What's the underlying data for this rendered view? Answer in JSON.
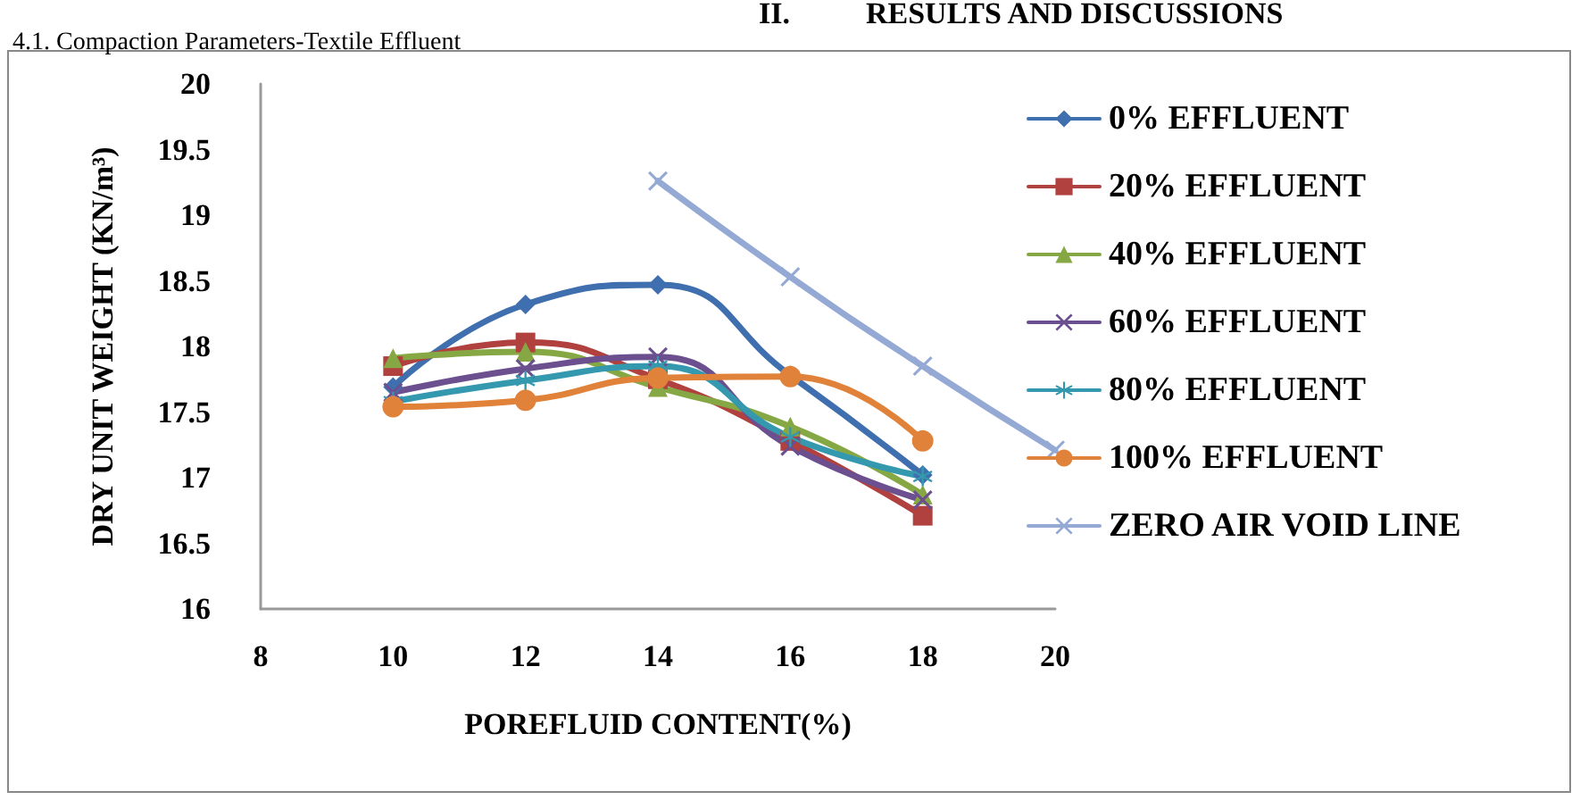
{
  "chart_data": {
    "type": "line",
    "title": "II.          RESULTS AND DISCUSSIONS",
    "subtitle": "4.1. Compaction Parameters-Textile Effluent",
    "xlabel": "POREFLUID CONTENT(%)",
    "ylabel": "DRY UNIT WEIGHT (KN/m³)",
    "x": [
      10,
      12,
      14,
      16,
      18
    ],
    "xlim": [
      8,
      20
    ],
    "xticks": [
      8,
      10,
      12,
      14,
      16,
      18,
      20
    ],
    "ylim": [
      16,
      20
    ],
    "yticks": [
      16,
      16.5,
      17,
      17.5,
      18,
      18.5,
      19,
      19.5,
      20
    ],
    "grid": false,
    "legend": "right",
    "series": [
      {
        "name": "0% EFFLUENT",
        "color": "#3f6fae",
        "marker": "diamond",
        "values": [
          17.69,
          18.32,
          18.47,
          17.78,
          17.02
        ]
      },
      {
        "name": "20% EFFLUENT",
        "color": "#b0413e",
        "marker": "square",
        "values": [
          17.85,
          18.03,
          17.75,
          17.28,
          16.71
        ]
      },
      {
        "name": "40% EFFLUENT",
        "color": "#86a844",
        "marker": "triangle",
        "values": [
          17.91,
          17.96,
          17.69,
          17.39,
          16.87
        ]
      },
      {
        "name": "60% EFFLUENT",
        "color": "#6b4f8e",
        "marker": "cross",
        "values": [
          17.65,
          17.83,
          17.92,
          17.24,
          16.83
        ]
      },
      {
        "name": "80% EFFLUENT",
        "color": "#3499ae",
        "marker": "star",
        "values": [
          17.58,
          17.74,
          17.85,
          17.31,
          17.01
        ]
      },
      {
        "name": "100% EFFLUENT",
        "color": "#e0823a",
        "marker": "circle",
        "values": [
          17.54,
          17.59,
          17.76,
          17.77,
          17.28
        ]
      },
      {
        "name": "ZERO AIR VOID LINE",
        "color": "#94a9d4",
        "marker": "cross",
        "x": [
          14,
          16,
          18,
          20
        ],
        "values": [
          19.26,
          18.53,
          17.85,
          17.21
        ]
      }
    ]
  }
}
